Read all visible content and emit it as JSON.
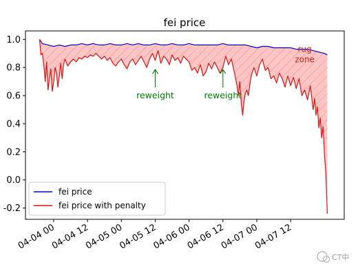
{
  "chart_data": {
    "type": "line",
    "title": "fei price",
    "xlabel": "",
    "ylabel": "",
    "x_ticks": [
      "04-04 00",
      "04-04 12",
      "04-05 00",
      "04-05 12",
      "04-06 00",
      "04-06 12",
      "04-07 00",
      "04-07 12"
    ],
    "xlim_hours": [
      -10,
      103
    ],
    "ylim": [
      -0.28,
      1.06
    ],
    "y_ticks": [
      "1.0",
      "0.8",
      "0.6",
      "0.4",
      "0.2",
      "0.0",
      "-0.2"
    ],
    "y_tick_values": [
      1.0,
      0.8,
      0.6,
      0.4,
      0.2,
      0.0,
      -0.2
    ],
    "series": [
      {
        "name": "fei price",
        "color": "#0000cc",
        "points": [
          [
            -5,
            1.0
          ],
          [
            -4,
            0.97
          ],
          [
            -2,
            0.96
          ],
          [
            0,
            0.95
          ],
          [
            2,
            0.96
          ],
          [
            4,
            0.95
          ],
          [
            6,
            0.96
          ],
          [
            8,
            0.96
          ],
          [
            10,
            0.97
          ],
          [
            12,
            0.96
          ],
          [
            14,
            0.97
          ],
          [
            16,
            0.96
          ],
          [
            18,
            0.96
          ],
          [
            20,
            0.97
          ],
          [
            22,
            0.96
          ],
          [
            24,
            0.96
          ],
          [
            26,
            0.97
          ],
          [
            28,
            0.96
          ],
          [
            30,
            0.97
          ],
          [
            32,
            0.96
          ],
          [
            34,
            0.96
          ],
          [
            36,
            0.97
          ],
          [
            38,
            0.96
          ],
          [
            40,
            0.96
          ],
          [
            42,
            0.97
          ],
          [
            44,
            0.96
          ],
          [
            46,
            0.96
          ],
          [
            48,
            0.97
          ],
          [
            50,
            0.96
          ],
          [
            52,
            0.96
          ],
          [
            54,
            0.96
          ],
          [
            56,
            0.96
          ],
          [
            58,
            0.96
          ],
          [
            60,
            0.97
          ],
          [
            62,
            0.96
          ],
          [
            64,
            0.96
          ],
          [
            66,
            0.96
          ],
          [
            68,
            0.96
          ],
          [
            70,
            0.95
          ],
          [
            72,
            0.94
          ],
          [
            74,
            0.95
          ],
          [
            76,
            0.95
          ],
          [
            78,
            0.94
          ],
          [
            80,
            0.94
          ],
          [
            82,
            0.94
          ],
          [
            84,
            0.94
          ],
          [
            86,
            0.93
          ],
          [
            88,
            0.93
          ],
          [
            90,
            0.93
          ],
          [
            92,
            0.92
          ],
          [
            94,
            0.91
          ],
          [
            96,
            0.9
          ],
          [
            97,
            0.89
          ]
        ]
      },
      {
        "name": "fei price with penalty",
        "color": "#dd1111",
        "points": [
          [
            -5,
            1.0
          ],
          [
            -4.5,
            0.89
          ],
          [
            -4,
            0.9
          ],
          [
            -3.5,
            0.82
          ],
          [
            -3,
            0.7
          ],
          [
            -2.5,
            0.84
          ],
          [
            -2,
            0.64
          ],
          [
            -1.5,
            0.72
          ],
          [
            -1,
            0.79
          ],
          [
            -0.5,
            0.63
          ],
          [
            0,
            0.7
          ],
          [
            0.5,
            0.8
          ],
          [
            1,
            0.76
          ],
          [
            1.5,
            0.66
          ],
          [
            2,
            0.74
          ],
          [
            2.5,
            0.83
          ],
          [
            3,
            0.72
          ],
          [
            3.5,
            0.82
          ],
          [
            4,
            0.86
          ],
          [
            5,
            0.81
          ],
          [
            6,
            0.84
          ],
          [
            7,
            0.86
          ],
          [
            8,
            0.84
          ],
          [
            9,
            0.87
          ],
          [
            10,
            0.86
          ],
          [
            11,
            0.88
          ],
          [
            12,
            0.87
          ],
          [
            13,
            0.89
          ],
          [
            14,
            0.88
          ],
          [
            15,
            0.9
          ],
          [
            16,
            0.88
          ],
          [
            17,
            0.86
          ],
          [
            18,
            0.88
          ],
          [
            19,
            0.85
          ],
          [
            20,
            0.87
          ],
          [
            21,
            0.83
          ],
          [
            22,
            0.81
          ],
          [
            23,
            0.84
          ],
          [
            24,
            0.86
          ],
          [
            25,
            0.82
          ],
          [
            26,
            0.79
          ],
          [
            27,
            0.84
          ],
          [
            28,
            0.86
          ],
          [
            29,
            0.82
          ],
          [
            30,
            0.85
          ],
          [
            31,
            0.88
          ],
          [
            32,
            0.84
          ],
          [
            33,
            0.8
          ],
          [
            34,
            0.86
          ],
          [
            35,
            0.9
          ],
          [
            36,
            0.85
          ],
          [
            37,
            0.92
          ],
          [
            38,
            0.83
          ],
          [
            39,
            0.88
          ],
          [
            40,
            0.86
          ],
          [
            41,
            0.82
          ],
          [
            42,
            0.89
          ],
          [
            43,
            0.85
          ],
          [
            44,
            0.87
          ],
          [
            45,
            0.83
          ],
          [
            46,
            0.88
          ],
          [
            47,
            0.86
          ],
          [
            48,
            0.84
          ],
          [
            49,
            0.78
          ],
          [
            50,
            0.8
          ],
          [
            51,
            0.76
          ],
          [
            52,
            0.82
          ],
          [
            53,
            0.74
          ],
          [
            54,
            0.77
          ],
          [
            55,
            0.83
          ],
          [
            56,
            0.79
          ],
          [
            57,
            0.84
          ],
          [
            58,
            0.8
          ],
          [
            59,
            0.76
          ],
          [
            60,
            0.8
          ],
          [
            61,
            0.88
          ],
          [
            62,
            0.82
          ],
          [
            63,
            0.86
          ],
          [
            64,
            0.77
          ],
          [
            65,
            0.67
          ],
          [
            65.5,
            0.6
          ],
          [
            66,
            0.7
          ],
          [
            66.5,
            0.55
          ],
          [
            67,
            0.46
          ],
          [
            67.5,
            0.56
          ],
          [
            68,
            0.62
          ],
          [
            68.5,
            0.64
          ],
          [
            69,
            0.6
          ],
          [
            70,
            0.74
          ],
          [
            71,
            0.8
          ],
          [
            72,
            0.74
          ],
          [
            73,
            0.82
          ],
          [
            74,
            0.86
          ],
          [
            75,
            0.78
          ],
          [
            76,
            0.8
          ],
          [
            77,
            0.72
          ],
          [
            78,
            0.74
          ],
          [
            79,
            0.69
          ],
          [
            80,
            0.76
          ],
          [
            81,
            0.72
          ],
          [
            82,
            0.66
          ],
          [
            83,
            0.74
          ],
          [
            84,
            0.67
          ],
          [
            85,
            0.73
          ],
          [
            86,
            0.65
          ],
          [
            87,
            0.72
          ],
          [
            88,
            0.6
          ],
          [
            89,
            0.64
          ],
          [
            90,
            0.57
          ],
          [
            91,
            0.67
          ],
          [
            92,
            0.5
          ],
          [
            92.5,
            0.58
          ],
          [
            93,
            0.46
          ],
          [
            93.5,
            0.52
          ],
          [
            94,
            0.37
          ],
          [
            94.5,
            0.44
          ],
          [
            95,
            0.3
          ],
          [
            95.5,
            0.38
          ],
          [
            96,
            0.18
          ],
          [
            96.5,
            0.04
          ],
          [
            97,
            -0.24
          ]
        ]
      }
    ],
    "annotations": [
      {
        "text": "reweight",
        "x": 36,
        "y_text": 0.6,
        "y_arrow_tip": 0.8,
        "color": "#008000"
      },
      {
        "text": "reweight",
        "x": 60,
        "y_text": 0.6,
        "y_arrow_tip": 0.8,
        "color": "#008000"
      }
    ],
    "rug_zone": {
      "lines": [
        "rug",
        "zone"
      ],
      "x": 89,
      "y": 0.91,
      "color": "#cc2222"
    },
    "fill_between": {
      "color": "#ffbbbb",
      "hatch": "diagonal",
      "hatch_color": "#ee8888"
    },
    "legend": {
      "position": "lower-left",
      "entries": [
        "fei price",
        "fei price with penalty"
      ]
    },
    "grid": false
  },
  "watermark": {
    "text": "CT中"
  }
}
